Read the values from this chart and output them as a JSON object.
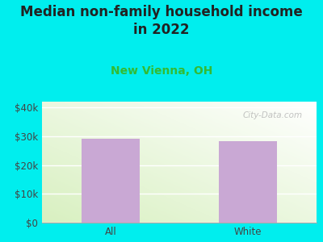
{
  "categories": [
    "All",
    "White"
  ],
  "values": [
    29000,
    28200
  ],
  "bar_color": "#C9A8D4",
  "background_color": "#00EEEE",
  "title": "Median non-family household income\nin 2022",
  "subtitle": "New Vienna, OH",
  "subtitle_color": "#33BB33",
  "title_color": "#222222",
  "ylabel_ticks": [
    "$0",
    "$10k",
    "$20k",
    "$30k",
    "$40k"
  ],
  "ytick_values": [
    0,
    10000,
    20000,
    30000,
    40000
  ],
  "ylim": [
    0,
    42000
  ],
  "watermark": "City-Data.com",
  "title_fontsize": 12,
  "subtitle_fontsize": 10,
  "tick_fontsize": 8.5,
  "bar_width": 0.42
}
